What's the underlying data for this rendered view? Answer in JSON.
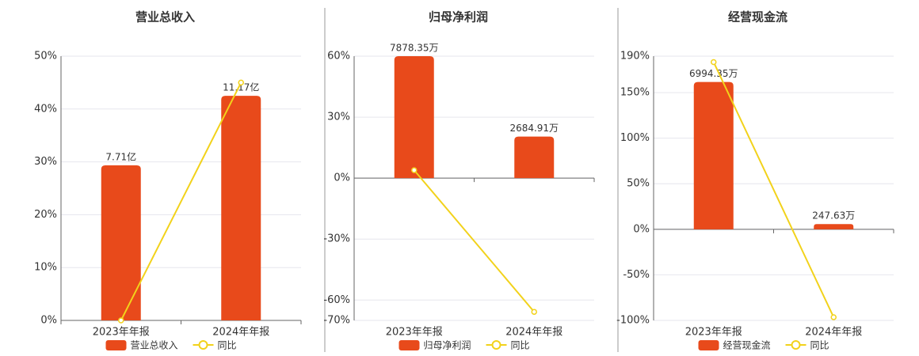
{
  "chart_data": [
    {
      "type": "bar",
      "title": "营业总收入",
      "categories": [
        "2023年年报",
        "2024年年报"
      ],
      "series": [
        {
          "name": "营业总收入",
          "type": "bar",
          "color": "#e84a1b",
          "axis": "y2",
          "values": [
            7.71,
            11.17
          ],
          "value_labels": [
            "7.71亿",
            "11.17亿"
          ]
        },
        {
          "name": "同比",
          "type": "line",
          "color": "#f2d21b",
          "values": [
            0,
            45
          ]
        }
      ],
      "ylim": [
        0,
        50
      ],
      "yticks": [
        {
          "value": 0,
          "label": "0%"
        },
        {
          "value": 10,
          "label": "10%"
        },
        {
          "value": 20,
          "label": "20%"
        },
        {
          "value": 30,
          "label": "30%"
        },
        {
          "value": 40,
          "label": "40%"
        },
        {
          "value": 50,
          "label": "50%"
        }
      ],
      "y2lim": [
        0,
        13.14
      ],
      "grid": true
    },
    {
      "type": "bar",
      "title": "归母净利润",
      "categories": [
        "2023年年报",
        "2024年年报"
      ],
      "series": [
        {
          "name": "归母净利润",
          "type": "bar",
          "color": "#e84a1b",
          "axis": "y2",
          "values": [
            7878.35,
            2684.91
          ],
          "value_labels": [
            "7878.35万",
            "2684.91万"
          ]
        },
        {
          "name": "同比",
          "type": "line",
          "color": "#f2d21b",
          "values": [
            3.9,
            -65.8
          ]
        }
      ],
      "ylim": [
        -70,
        60
      ],
      "yticks": [
        {
          "value": -70,
          "label": "-70%"
        },
        {
          "value": -60,
          "label": "-60%"
        },
        {
          "value": -30,
          "label": "-30%"
        },
        {
          "value": 0,
          "label": "0%"
        },
        {
          "value": 30,
          "label": "30%"
        },
        {
          "value": 60,
          "label": "60%"
        }
      ],
      "y2lim": [
        -9191.4,
        7878.35
      ],
      "grid": true
    },
    {
      "type": "bar",
      "title": "经营现金流",
      "categories": [
        "2023年年报",
        "2024年年报"
      ],
      "series": [
        {
          "name": "经营现金流",
          "type": "bar",
          "color": "#e84a1b",
          "axis": "y2",
          "values": [
            6994.35,
            247.63
          ],
          "value_labels": [
            "6994.35万",
            "247.63万"
          ]
        },
        {
          "name": "同比",
          "type": "line",
          "color": "#f2d21b",
          "values": [
            183.5,
            -96.5
          ]
        }
      ],
      "ylim": [
        -100,
        190
      ],
      "yticks": [
        {
          "value": -100,
          "label": "-100%"
        },
        {
          "value": -50,
          "label": "-50%"
        },
        {
          "value": 0,
          "label": "0%"
        },
        {
          "value": 50,
          "label": "50%"
        },
        {
          "value": 100,
          "label": "100%"
        },
        {
          "value": 150,
          "label": "150%"
        },
        {
          "value": 190,
          "label": "190%"
        }
      ],
      "y2lim": [
        -4325,
        8218
      ],
      "grid": true
    }
  ]
}
